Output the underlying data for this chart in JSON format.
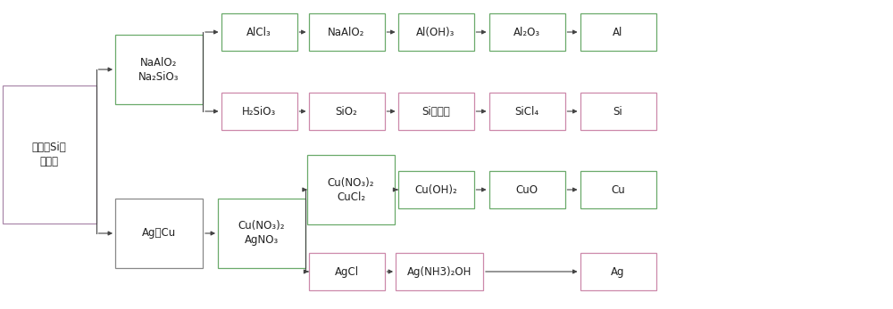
{
  "bg_color": "#ffffff",
  "arrow_color": "#444444",
  "font_size": 8.5,
  "border_colors": {
    "purple": "#aa88aa",
    "green": "#6aaa6a",
    "gray": "#888888",
    "pink": "#cc88aa"
  },
  "boxes": {
    "mix": {
      "col": 0,
      "row": 2,
      "text": "金属、Si等\n混合物",
      "border": "purple",
      "tall": true
    },
    "naalo2": {
      "col": 1,
      "row": 1,
      "text": "NaAlO₂\nNa₂SiO₃",
      "border": "green",
      "tall": true
    },
    "agcu": {
      "col": 1,
      "row": 3,
      "text": "Ag、Cu",
      "border": "gray",
      "tall": false
    },
    "alcl3": {
      "col": 2,
      "row": 0,
      "text": "AlCl₃",
      "border": "green",
      "tall": false
    },
    "h2sio3": {
      "col": 2,
      "row": 2,
      "text": "H₂SiO₃",
      "border": "pink",
      "tall": false
    },
    "cuno3agno3": {
      "col": 2,
      "row": 4,
      "text": "Cu(NO₃)₂\nAgNO₃",
      "border": "green",
      "tall": true
    },
    "naalo2b": {
      "col": 3,
      "row": 0,
      "text": "NaAlO₂",
      "border": "green",
      "tall": false
    },
    "sio2": {
      "col": 3,
      "row": 2,
      "text": "SiO₂",
      "border": "pink",
      "tall": false
    },
    "cuno3cucl2": {
      "col": 3,
      "row": 3,
      "text": "Cu(NO₃)₂\nCuCl₂",
      "border": "green",
      "tall": true
    },
    "agcl": {
      "col": 3,
      "row": 5,
      "text": "AgCl",
      "border": "pink",
      "tall": false
    },
    "aloh3": {
      "col": 4,
      "row": 0,
      "text": "Al(OH)₃",
      "border": "green",
      "tall": false
    },
    "sicoarse": {
      "col": 4,
      "row": 2,
      "text": "Si（粗）",
      "border": "pink",
      "tall": false
    },
    "cuoh2": {
      "col": 4,
      "row": 3,
      "text": "Cu(OH)₂",
      "border": "green",
      "tall": false
    },
    "agnh3": {
      "col": 4,
      "row": 5,
      "text": "Ag(NH3)₂OH",
      "border": "pink",
      "tall": false
    },
    "al2o3": {
      "col": 5,
      "row": 0,
      "text": "Al₂O₃",
      "border": "green",
      "tall": false
    },
    "sicl4": {
      "col": 5,
      "row": 2,
      "text": "SiCl₄",
      "border": "pink",
      "tall": false
    },
    "cuo": {
      "col": 5,
      "row": 3,
      "text": "CuO",
      "border": "green",
      "tall": false
    },
    "ag": {
      "col": 6,
      "row": 5,
      "text": "Ag",
      "border": "pink",
      "tall": false
    },
    "al": {
      "col": 6,
      "row": 0,
      "text": "Al",
      "border": "green",
      "tall": false
    },
    "si": {
      "col": 6,
      "row": 2,
      "text": "Si",
      "border": "pink",
      "tall": false
    },
    "cu": {
      "col": 6,
      "row": 3,
      "text": "Cu",
      "border": "green",
      "tall": false
    }
  }
}
